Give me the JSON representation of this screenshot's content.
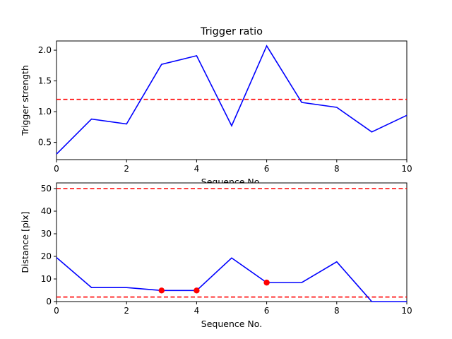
{
  "chart_data": [
    {
      "type": "line",
      "title": "Trigger ratio",
      "xlabel": "Sequence No.",
      "ylabel": "Trigger strength",
      "xlim": [
        0,
        10
      ],
      "ylim": [
        0.22,
        2.15
      ],
      "xticks": [
        "0",
        "2",
        "4",
        "6",
        "8",
        "10"
      ],
      "yticks": [
        "0.5",
        "1.0",
        "1.5",
        "2.0"
      ],
      "grid": false,
      "series": [
        {
          "x": [
            0,
            1,
            2,
            3,
            4,
            5,
            6,
            7,
            8,
            9,
            10
          ],
          "y": [
            0.31,
            0.88,
            0.8,
            1.77,
            1.91,
            0.77,
            2.07,
            1.15,
            1.07,
            0.67,
            0.94
          ],
          "color": "#0000ff",
          "style": "solid"
        }
      ],
      "hlines": [
        {
          "y": 1.2,
          "color": "#ff0000",
          "style": "dashed"
        }
      ]
    },
    {
      "type": "line",
      "title": "",
      "xlabel": "Sequence No.",
      "ylabel": "Distance [pix]",
      "xlim": [
        0,
        10
      ],
      "ylim": [
        0,
        52.5
      ],
      "xticks": [
        "0",
        "2",
        "4",
        "6",
        "8",
        "10"
      ],
      "yticks": [
        "0",
        "10",
        "20",
        "30",
        "40",
        "50"
      ],
      "grid": false,
      "series": [
        {
          "x": [
            0,
            1,
            2,
            3,
            4,
            5,
            6,
            7,
            8,
            9,
            10
          ],
          "y": [
            19.5,
            6.2,
            6.2,
            4.9,
            4.9,
            19.3,
            8.4,
            8.4,
            17.6,
            0,
            0
          ],
          "color": "#0000ff",
          "style": "solid"
        }
      ],
      "markers": [
        {
          "x": 3,
          "y": 4.9,
          "color": "#ff0000"
        },
        {
          "x": 4,
          "y": 4.9,
          "color": "#ff0000"
        },
        {
          "x": 6,
          "y": 8.4,
          "color": "#ff0000"
        }
      ],
      "hlines": [
        {
          "y": 50,
          "color": "#ff0000",
          "style": "dashed"
        },
        {
          "y": 2,
          "color": "#ff0000",
          "style": "dashed"
        }
      ]
    }
  ]
}
